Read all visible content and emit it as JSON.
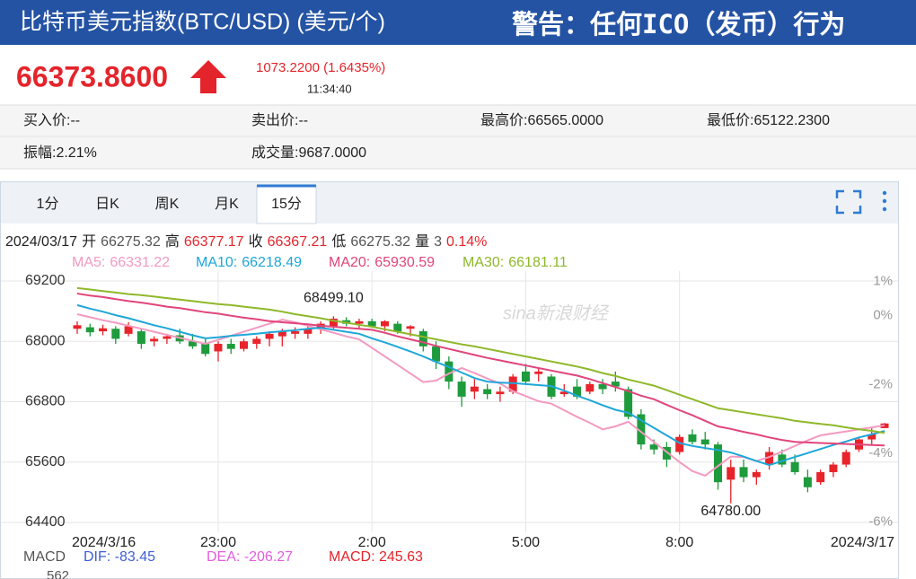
{
  "header": {
    "title": "比特币美元指数(BTC/USD) (美元/个)",
    "notice": "警告：任何ICO（发币）行为"
  },
  "quote": {
    "price": "66373.8600",
    "change": "1073.2200 (1.6435%)",
    "time": "11:34:40"
  },
  "stats": [
    [
      "买入价:--",
      "卖出价:--",
      "最高价:66565.0000",
      "最低价:65122.2300"
    ],
    [
      "振幅:2.21%",
      "成交量:9687.0000"
    ]
  ],
  "tabs": [
    {
      "label": "1分"
    },
    {
      "label": "日K"
    },
    {
      "label": "周K"
    },
    {
      "label": "月K"
    },
    {
      "label": "15分",
      "active": true
    }
  ],
  "bar_info": {
    "date": "2024/03/17",
    "open_label": "开",
    "high_label": "高",
    "close_label": "收",
    "low_label": "低",
    "volume_label": "量",
    "volume": "3",
    "change": "0.14%"
  },
  "watermark": "sina新浪财经",
  "macd": {
    "title": "MACD",
    "dif": "DIF: -83.45",
    "dea": "DEA: -206.27",
    "macd": "MACD: 245.63",
    "axis_top": "562"
  },
  "chart_data": {
    "type": "candlestick",
    "categories": [
      "2024/3/16",
      null,
      null,
      null,
      null,
      null,
      null,
      null,
      null,
      null,
      null,
      "23:00",
      null,
      null,
      null,
      null,
      null,
      null,
      null,
      null,
      null,
      null,
      null,
      "2:00",
      null,
      null,
      null,
      null,
      null,
      null,
      null,
      null,
      null,
      null,
      null,
      "5:00",
      null,
      null,
      null,
      null,
      null,
      null,
      null,
      null,
      null,
      null,
      null,
      "8:00",
      null,
      null,
      null,
      null,
      null,
      null,
      null,
      null,
      null,
      null,
      null,
      null,
      null,
      null,
      null,
      "2024/3/17"
    ],
    "open": [
      68250,
      68280,
      68200,
      68250,
      68150,
      68200,
      68000,
      68050,
      68120,
      68000,
      67950,
      67800,
      67950,
      67850,
      67950,
      68050,
      68100,
      68150,
      68150,
      68250,
      68300,
      68420,
      68350,
      68400,
      68300,
      68350,
      68250,
      68200,
      67900,
      67600,
      67200,
      67000,
      67050,
      66950,
      67000,
      67400,
      67350,
      67300,
      66950,
      67100,
      67000,
      67150,
      67200,
      67050,
      66550,
      65950,
      65900,
      65800,
      66150,
      66050,
      65950,
      65250,
      65500,
      65300,
      65550,
      65750,
      65600,
      65300,
      65200,
      65400,
      65550,
      65850,
      66050,
      66275.32
    ],
    "high": [
      68400,
      68350,
      68330,
      68300,
      68380,
      68250,
      68100,
      68150,
      68250,
      68150,
      68050,
      68000,
      68050,
      68050,
      68100,
      68200,
      68250,
      68280,
      68300,
      68400,
      68499.1,
      68480,
      68450,
      68450,
      68420,
      68400,
      68320,
      68250,
      68000,
      67700,
      67300,
      67250,
      67150,
      67100,
      67350,
      67550,
      67450,
      67350,
      67150,
      67250,
      67200,
      67250,
      67400,
      67100,
      66650,
      66050,
      66000,
      66150,
      66250,
      66200,
      66000,
      65650,
      65650,
      65450,
      65900,
      65850,
      65750,
      65450,
      65450,
      65600,
      65850,
      66100,
      66300,
      66377.17
    ],
    "low": [
      68150,
      68100,
      68120,
      67950,
      68100,
      67850,
      67900,
      67950,
      67950,
      67850,
      67700,
      67600,
      67750,
      67800,
      67850,
      67900,
      67900,
      68050,
      68050,
      68150,
      68250,
      68300,
      68250,
      68280,
      68200,
      68150,
      68100,
      67800,
      67450,
      67050,
      66700,
      66850,
      66850,
      66800,
      66950,
      67150,
      67200,
      66850,
      66900,
      66850,
      66950,
      66950,
      67000,
      66450,
      65850,
      65750,
      65500,
      65750,
      65950,
      65850,
      65050,
      64780,
      65200,
      65150,
      65450,
      65500,
      65350,
      65000,
      65150,
      65300,
      65500,
      65800,
      65950,
      66275.32
    ],
    "close": [
      68320,
      68180,
      68260,
      68050,
      68300,
      67950,
      68050,
      68100,
      68000,
      67900,
      67750,
      67950,
      67850,
      68000,
      68050,
      68150,
      68200,
      68200,
      68250,
      68350,
      68450,
      68350,
      68400,
      68300,
      68400,
      68200,
      68300,
      67900,
      67600,
      67200,
      66900,
      67100,
      66950,
      67000,
      67300,
      67200,
      67400,
      66900,
      67000,
      66900,
      67150,
      67050,
      67100,
      66500,
      65950,
      65850,
      65650,
      66100,
      66000,
      65950,
      65200,
      65500,
      65300,
      65400,
      65800,
      65550,
      65400,
      65100,
      65400,
      65550,
      65800,
      66050,
      66150,
      66367.21
    ],
    "up_color": "#e8232a",
    "down_color": "#1e9b3c",
    "series": [
      {
        "name": "MA5:",
        "color": "#f39ac0",
        "values": [
          68540,
          68480,
          68420,
          68370,
          68310,
          68250,
          68190,
          68130,
          68070,
          68010,
          67950,
          68030,
          68110,
          68190,
          68270,
          68350,
          68430,
          68380,
          68310,
          68240,
          68170,
          68100,
          68040,
          67870,
          67700,
          67530,
          67360,
          67190,
          67220,
          67360,
          67470,
          67370,
          67260,
          67160,
          67010,
          66910,
          66810,
          66760,
          66630,
          66500,
          66380,
          66250,
          66310,
          66400,
          66200,
          66000,
          65800,
          65600,
          65420,
          65330,
          65520,
          65710,
          65700,
          65620,
          65700,
          65810,
          65920,
          66030,
          66130,
          66170,
          66210,
          66250,
          66290,
          66331.22
        ]
      },
      {
        "name": "MA10:",
        "color": "#1ea7d8",
        "values": [
          68720,
          68650,
          68590,
          68520,
          68460,
          68390,
          68320,
          68260,
          68190,
          68120,
          68060,
          68080,
          68110,
          68130,
          68150,
          68180,
          68200,
          68220,
          68250,
          68270,
          68230,
          68190,
          68150,
          68060,
          67980,
          67890,
          67800,
          67700,
          67590,
          67490,
          67380,
          67270,
          67200,
          67180,
          67170,
          67150,
          67130,
          67110,
          67020,
          66920,
          66830,
          66730,
          66640,
          66580,
          66430,
          66280,
          66130,
          65980,
          65920,
          65880,
          65840,
          65790,
          65710,
          65620,
          65540,
          65620,
          65700,
          65780,
          65860,
          65940,
          66010,
          66090,
          66150,
          66218.49
        ]
      },
      {
        "name": "MA20:",
        "color": "#e0457b",
        "values": [
          68950,
          68910,
          68880,
          68840,
          68800,
          68770,
          68730,
          68690,
          68660,
          68620,
          68580,
          68550,
          68510,
          68470,
          68440,
          68400,
          68380,
          68360,
          68340,
          68310,
          68290,
          68270,
          68250,
          68230,
          68170,
          68100,
          68040,
          67980,
          67910,
          67850,
          67790,
          67730,
          67670,
          67620,
          67570,
          67520,
          67470,
          67420,
          67370,
          67320,
          67250,
          67170,
          67090,
          67010,
          66920,
          66850,
          66740,
          66630,
          66530,
          66420,
          66310,
          66260,
          66200,
          66150,
          66090,
          66040,
          66000,
          65990,
          65980,
          65970,
          65960,
          65950,
          65940,
          65930.59
        ]
      },
      {
        "name": "MA30:",
        "color": "#8fb82a",
        "values": [
          69060,
          69030,
          69000,
          68970,
          68940,
          68920,
          68890,
          68860,
          68830,
          68800,
          68770,
          68740,
          68720,
          68690,
          68660,
          68630,
          68590,
          68540,
          68500,
          68460,
          68410,
          68370,
          68330,
          68290,
          68240,
          68190,
          68140,
          68090,
          68040,
          67990,
          67940,
          67900,
          67850,
          67800,
          67750,
          67700,
          67650,
          67600,
          67550,
          67500,
          67440,
          67370,
          67310,
          67240,
          67180,
          67120,
          67030,
          66940,
          66850,
          66760,
          66670,
          66630,
          66590,
          66550,
          66510,
          66470,
          66420,
          66390,
          66360,
          66330,
          66290,
          66250,
          66220,
          66181.11
        ]
      }
    ],
    "high_label": "68499.10",
    "low_label": "64780.00",
    "ylim": [
      64200,
      69400
    ],
    "yticks": [
      64400,
      65600,
      66800,
      68000,
      69200
    ],
    "y2lim": [
      -6.3,
      1.3
    ],
    "y2ticks": [
      {
        "value": 1,
        "label": "1%"
      },
      {
        "value": 0,
        "label": "0%"
      },
      {
        "value": -2,
        "label": "-2%"
      },
      {
        "value": -4,
        "label": "-4%"
      },
      {
        "value": -6,
        "label": "-6%"
      }
    ],
    "grid": true
  }
}
